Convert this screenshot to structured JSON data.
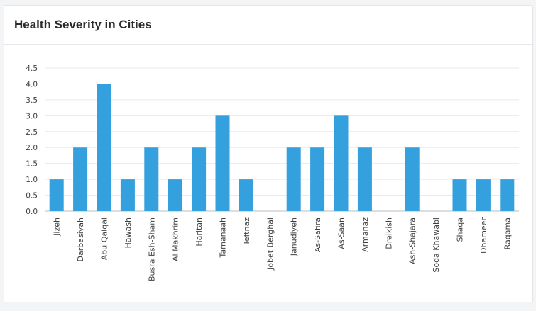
{
  "header": {
    "title": "Health Severity in Cities"
  },
  "colors": {
    "bar": "#34a0de",
    "grid": "#e8eaee",
    "axis": "#b8bcc2",
    "text": "#404040"
  },
  "chart_data": {
    "type": "bar",
    "title": "Health Severity in Cities",
    "xlabel": "",
    "ylabel": "",
    "ylim": [
      0,
      4.5
    ],
    "yticks": [
      "0.0",
      "0.5",
      "1.0",
      "1.5",
      "2.0",
      "2.5",
      "3.0",
      "3.5",
      "4.0",
      "4.5"
    ],
    "grid": true,
    "categories": [
      "Jizeh",
      "Darbasiyah",
      "Abu Qalqal",
      "Hawash",
      "Busra Esh-Sham",
      "Al Makhrim",
      "Haritan",
      "Tamanaah",
      "Teftnaz",
      "Jobet Berghal",
      "Janudiyeh",
      "As-Safira",
      "As-Saan",
      "Armanaz",
      "Dreikish",
      "Ash-Shajara",
      "Soda Khawabi",
      "Shaqa",
      "Dhameer",
      "Raqama"
    ],
    "values": [
      1,
      2,
      4,
      1,
      2,
      1,
      2,
      3,
      1,
      0,
      2,
      2,
      3,
      2,
      0,
      2,
      0,
      1,
      1,
      1
    ]
  }
}
